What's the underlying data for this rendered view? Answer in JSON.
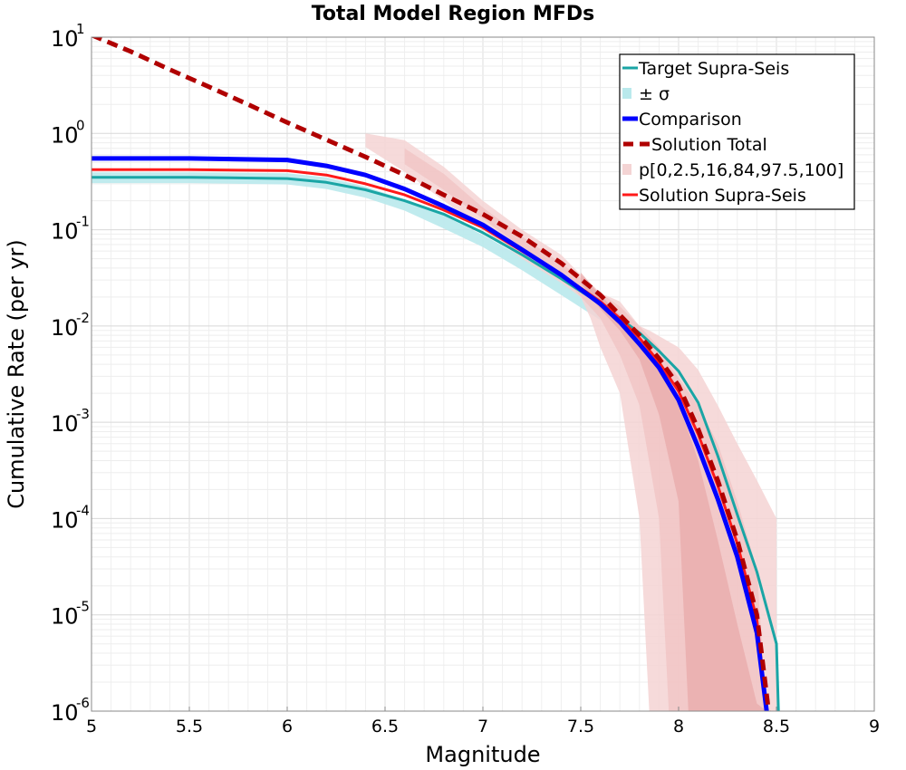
{
  "chart_data": {
    "type": "line",
    "title": "Total Model Region MFDs",
    "xlabel": "Magnitude",
    "ylabel": "Cumulative Rate (per yr)",
    "xlim": [
      5,
      9
    ],
    "ylim": [
      1e-06,
      10
    ],
    "yscale": "log",
    "grid": true,
    "legend_position": "top-right",
    "x_ticks": [
      "5",
      "5.5",
      "6",
      "6.5",
      "7",
      "7.5",
      "8",
      "8.5",
      "9"
    ],
    "y_ticks": [
      {
        "base": "10",
        "exp": "1"
      },
      {
        "base": "10",
        "exp": "0"
      },
      {
        "base": "10",
        "exp": "-1"
      },
      {
        "base": "10",
        "exp": "-2"
      },
      {
        "base": "10",
        "exp": "-3"
      },
      {
        "base": "10",
        "exp": "-4"
      },
      {
        "base": "10",
        "exp": "-5"
      },
      {
        "base": "10",
        "exp": "-6"
      }
    ],
    "legend": [
      {
        "label": "Target Supra-Seis",
        "color": "#1aa5a5",
        "kind": "line"
      },
      {
        "label": "± σ",
        "color": "#b9e9ec",
        "kind": "box"
      },
      {
        "label": "Comparison",
        "color": "#0000ff",
        "kind": "thick"
      },
      {
        "label": "Solution Total",
        "color": "#b00000",
        "kind": "dashed"
      },
      {
        "label": "p[0,2.5,16,84,97.5,100]",
        "color": "#f4d4d4",
        "kind": "box"
      },
      {
        "label": "Solution Supra-Seis",
        "color": "#ff1a1a",
        "kind": "line"
      }
    ],
    "bands": [
      {
        "name": "± σ",
        "color": "#b9e9ec",
        "opacity": 0.9,
        "x": [
          5.0,
          5.5,
          6.0,
          6.2,
          6.4,
          6.6,
          6.8,
          7.0,
          7.2,
          7.4,
          7.6
        ],
        "lower": [
          0.305,
          0.305,
          0.295,
          0.265,
          0.215,
          0.158,
          0.103,
          0.066,
          0.038,
          0.021,
          0.0115
        ],
        "upper": [
          0.395,
          0.395,
          0.385,
          0.35,
          0.28,
          0.205,
          0.14,
          0.088,
          0.052,
          0.031,
          0.018
        ]
      },
      {
        "name": "p[0,100]",
        "color": "#f4d4d4",
        "opacity": 0.85,
        "x": [
          6.4,
          6.6,
          6.8,
          7.0,
          7.2,
          7.4,
          7.5,
          7.55,
          7.6,
          7.7,
          7.8,
          7.85,
          7.85,
          8.0,
          8.1,
          8.2,
          8.3,
          8.4,
          8.5,
          8.5
        ],
        "lower": [
          0.72,
          0.4,
          0.2,
          0.1,
          0.05,
          0.028,
          0.02,
          0.012,
          0.006,
          0.002,
          0.0001,
          1e-06,
          1e-06,
          1e-06,
          1e-06,
          1e-06,
          1e-06,
          1e-06,
          1e-06,
          1e-06
        ],
        "upper": [
          1.0,
          0.85,
          0.45,
          0.2,
          0.1,
          0.055,
          0.034,
          0.028,
          0.022,
          0.018,
          0.01,
          0.009,
          0.009,
          0.006,
          0.0035,
          0.0015,
          0.0006,
          0.00025,
          0.0001,
          1e-06
        ]
      },
      {
        "name": "p[2.5,97.5]",
        "color": "#f0c3c3",
        "opacity": 0.75,
        "x": [
          6.6,
          6.8,
          7.0,
          7.2,
          7.4,
          7.6,
          7.7,
          7.8,
          7.9,
          7.95,
          8.1,
          8.2,
          8.3,
          8.4,
          8.45
        ],
        "lower": [
          0.48,
          0.26,
          0.13,
          0.065,
          0.034,
          0.012,
          0.005,
          0.0015,
          0.0001,
          1e-06,
          1e-06,
          1e-06,
          1e-06,
          1e-06,
          1e-06
        ],
        "upper": [
          0.7,
          0.38,
          0.17,
          0.085,
          0.045,
          0.022,
          0.016,
          0.01,
          0.006,
          0.004,
          0.0015,
          0.0006,
          0.00015,
          3e-05,
          1e-06
        ]
      },
      {
        "name": "p[16,84]",
        "color": "#e8a8a8",
        "opacity": 0.7,
        "x": [
          7.5,
          7.6,
          7.7,
          7.8,
          7.9,
          8.0,
          8.05,
          8.1,
          8.2,
          8.3,
          8.4,
          8.45
        ],
        "lower": [
          0.028,
          0.015,
          0.009,
          0.0045,
          0.0012,
          0.00015,
          1e-06,
          1e-06,
          1e-06,
          1e-06,
          1e-06,
          1e-06
        ],
        "upper": [
          0.036,
          0.021,
          0.013,
          0.007,
          0.0035,
          0.0015,
          0.0008,
          0.0004,
          6e-05,
          8e-06,
          1.2e-06,
          1e-06
        ]
      }
    ],
    "series": [
      {
        "name": "Target Supra-Seis",
        "color": "#1aa5a5",
        "width": 3,
        "dash": "",
        "x": [
          5.0,
          5.5,
          6.0,
          6.2,
          6.4,
          6.6,
          6.8,
          7.0,
          7.2,
          7.4,
          7.6,
          7.7,
          7.8,
          7.9,
          8.0,
          8.1,
          8.2,
          8.3,
          8.4,
          8.5,
          8.51
        ],
        "y": [
          0.35,
          0.35,
          0.34,
          0.31,
          0.26,
          0.2,
          0.145,
          0.093,
          0.055,
          0.031,
          0.017,
          0.012,
          0.0085,
          0.0055,
          0.0034,
          0.0016,
          0.00045,
          0.00011,
          2.8e-05,
          5e-06,
          1e-06
        ]
      },
      {
        "name": "Solution Supra-Seis",
        "color": "#ff1a1a",
        "width": 3,
        "dash": "",
        "x": [
          5.0,
          5.5,
          6.0,
          6.2,
          6.4,
          6.6,
          6.8,
          7.0,
          7.2,
          7.4,
          7.6,
          7.7,
          7.8,
          7.9,
          8.0,
          8.1,
          8.2,
          8.3,
          8.4,
          8.45
        ],
        "y": [
          0.42,
          0.42,
          0.41,
          0.37,
          0.3,
          0.23,
          0.16,
          0.105,
          0.06,
          0.034,
          0.018,
          0.012,
          0.0075,
          0.0042,
          0.0021,
          0.00075,
          0.00022,
          5.5e-05,
          9e-06,
          1e-06
        ]
      },
      {
        "name": "Comparison",
        "color": "#0000ff",
        "width": 5,
        "dash": "",
        "x": [
          5.0,
          5.5,
          6.0,
          6.2,
          6.4,
          6.6,
          6.8,
          7.0,
          7.2,
          7.4,
          7.6,
          7.7,
          7.8,
          7.9,
          8.0,
          8.1,
          8.2,
          8.3,
          8.4,
          8.45
        ],
        "y": [
          0.55,
          0.55,
          0.53,
          0.46,
          0.37,
          0.265,
          0.175,
          0.112,
          0.062,
          0.034,
          0.017,
          0.011,
          0.0065,
          0.0037,
          0.0017,
          0.00055,
          0.00016,
          4e-05,
          6.5e-06,
          1e-06
        ]
      },
      {
        "name": "Solution Total",
        "color": "#b00000",
        "width": 5,
        "dash": "12 7",
        "x": [
          5.0,
          5.2,
          5.4,
          5.6,
          5.8,
          6.0,
          6.2,
          6.4,
          6.6,
          6.8,
          7.0,
          7.2,
          7.4,
          7.6,
          7.7,
          7.8,
          7.9,
          8.0,
          8.1,
          8.2,
          8.3,
          8.4,
          8.46
        ],
        "y": [
          10.5,
          7.1,
          4.6,
          3.05,
          2.0,
          1.3,
          0.86,
          0.57,
          0.37,
          0.23,
          0.145,
          0.085,
          0.045,
          0.021,
          0.013,
          0.008,
          0.0046,
          0.0024,
          0.00085,
          0.00025,
          6e-05,
          1e-05,
          1e-06
        ]
      }
    ]
  }
}
